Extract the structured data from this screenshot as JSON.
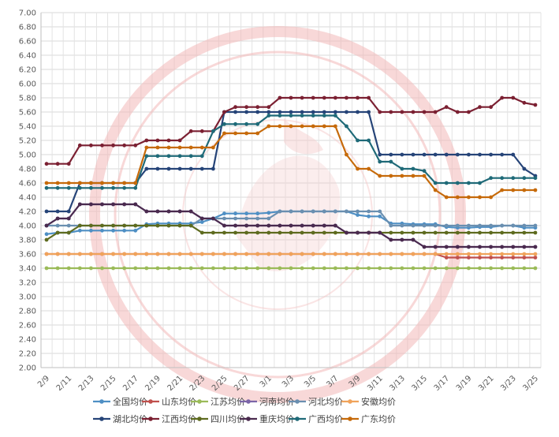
{
  "chart_data": {
    "type": "line",
    "title": "",
    "xlabel": "",
    "ylabel": "",
    "ylim": [
      2.0,
      7.0
    ],
    "ytick_labels": [
      "2.00",
      "2.20",
      "2.40",
      "2.60",
      "2.80",
      "3.00",
      "3.20",
      "3.40",
      "3.60",
      "3.80",
      "4.00",
      "4.20",
      "4.40",
      "4.60",
      "4.80",
      "5.00",
      "5.20",
      "5.40",
      "5.60",
      "5.80",
      "6.00",
      "6.20",
      "6.40",
      "6.60",
      "6.80",
      "7.00"
    ],
    "x": [
      "2/9",
      "2/10",
      "2/11",
      "2/12",
      "2/13",
      "2/14",
      "2/15",
      "2/16",
      "2/17",
      "2/18",
      "2/19",
      "2/20",
      "2/21",
      "2/22",
      "2/23",
      "2/24",
      "2/25",
      "2/26",
      "2/27",
      "2/28",
      "3/1",
      "3/2",
      "3/3",
      "3/4",
      "3/5",
      "3/6",
      "3/7",
      "3/8",
      "3/9",
      "3/10",
      "3/11",
      "3/12",
      "3/13",
      "3/14",
      "3/15",
      "3/16",
      "3/17",
      "3/18",
      "3/19",
      "3/20",
      "3/21",
      "3/22",
      "3/23",
      "3/24",
      "3/25"
    ],
    "xtick_labels": [
      "2/9",
      "2/11",
      "2/13",
      "2/15",
      "2/17",
      "2/19",
      "2/21",
      "2/23",
      "2/25",
      "2/27",
      "3/1",
      "3/3",
      "3/5",
      "3/7",
      "3/9",
      "3/11",
      "3/13",
      "3/15",
      "3/17",
      "3/19",
      "3/21",
      "3/23",
      "3/25"
    ],
    "grid": true,
    "legend_position": "bottom",
    "series": [
      {
        "name": "全国均价",
        "color": "#4e8fc4",
        "marker": true,
        "values": [
          3.88,
          3.9,
          3.9,
          3.93,
          3.93,
          3.93,
          3.93,
          3.93,
          3.93,
          4.02,
          4.03,
          4.03,
          4.03,
          4.03,
          4.05,
          4.1,
          4.17,
          4.17,
          4.17,
          4.17,
          4.18,
          4.2,
          4.2,
          4.2,
          4.2,
          4.2,
          4.2,
          4.2,
          4.15,
          4.13,
          4.13,
          4.03,
          4.03,
          4.02,
          4.02,
          4.02,
          3.98,
          3.97,
          3.97,
          3.98,
          3.98,
          4.0,
          4.0,
          3.97,
          3.97
        ]
      },
      {
        "name": "山东均价",
        "color": "#c0504d",
        "marker": true,
        "values": [
          3.6,
          3.6,
          3.6,
          3.6,
          3.6,
          3.6,
          3.6,
          3.6,
          3.6,
          3.6,
          3.6,
          3.6,
          3.6,
          3.6,
          3.6,
          3.6,
          3.6,
          3.6,
          3.6,
          3.6,
          3.6,
          3.6,
          3.6,
          3.6,
          3.6,
          3.6,
          3.6,
          3.6,
          3.6,
          3.6,
          3.6,
          3.6,
          3.6,
          3.6,
          3.6,
          3.6,
          3.55,
          3.55,
          3.55,
          3.55,
          3.55,
          3.55,
          3.55,
          3.55,
          3.55
        ]
      },
      {
        "name": "江苏均价",
        "color": "#9bbb59",
        "marker": true,
        "values": [
          3.4,
          3.4,
          3.4,
          3.4,
          3.4,
          3.4,
          3.4,
          3.4,
          3.4,
          3.4,
          3.4,
          3.4,
          3.4,
          3.4,
          3.4,
          3.4,
          3.4,
          3.4,
          3.4,
          3.4,
          3.4,
          3.4,
          3.4,
          3.4,
          3.4,
          3.4,
          3.4,
          3.4,
          3.4,
          3.4,
          3.4,
          3.4,
          3.4,
          3.4,
          3.4,
          3.4,
          3.4,
          3.4,
          3.4,
          3.4,
          3.4,
          3.4,
          3.4,
          3.4,
          3.4
        ]
      },
      {
        "name": "河南均价",
        "color": "#7c65a8",
        "marker": true,
        "values": [
          4.0,
          4.1,
          4.1,
          4.3,
          4.3,
          4.3,
          4.3,
          4.3,
          4.3,
          4.2,
          4.2,
          4.2,
          4.2,
          4.2,
          4.1,
          4.1,
          4.0,
          4.0,
          4.0,
          4.0,
          4.0,
          4.0,
          4.0,
          4.0,
          4.0,
          4.0,
          4.0,
          3.9,
          3.9,
          3.9,
          3.9,
          3.8,
          3.8,
          3.8,
          3.7,
          3.7,
          3.7,
          3.7,
          3.7,
          3.7,
          3.7,
          3.7,
          3.7,
          3.7,
          3.7
        ]
      },
      {
        "name": "河北均价",
        "color": "#6a8fb0",
        "marker": true,
        "values": [
          4.0,
          4.0,
          4.0,
          4.0,
          4.0,
          4.0,
          4.0,
          4.0,
          4.0,
          4.0,
          4.0,
          4.0,
          4.0,
          4.0,
          4.1,
          4.1,
          4.1,
          4.1,
          4.1,
          4.1,
          4.1,
          4.2,
          4.2,
          4.2,
          4.2,
          4.2,
          4.2,
          4.2,
          4.2,
          4.2,
          4.2,
          4.0,
          4.0,
          4.0,
          4.0,
          4.0,
          4.0,
          4.0,
          4.0,
          4.0,
          4.0,
          4.0,
          4.0,
          4.0,
          4.0
        ]
      },
      {
        "name": "安徽均价",
        "color": "#f0a35b",
        "marker": true,
        "values": [
          3.6,
          3.6,
          3.6,
          3.6,
          3.6,
          3.6,
          3.6,
          3.6,
          3.6,
          3.6,
          3.6,
          3.6,
          3.6,
          3.6,
          3.6,
          3.6,
          3.6,
          3.6,
          3.6,
          3.6,
          3.6,
          3.6,
          3.6,
          3.6,
          3.6,
          3.6,
          3.6,
          3.6,
          3.6,
          3.6,
          3.6,
          3.6,
          3.6,
          3.6,
          3.6,
          3.6,
          3.6,
          3.6,
          3.6,
          3.6,
          3.6,
          3.6,
          3.6,
          3.6,
          3.6
        ]
      },
      {
        "name": "湖北均价",
        "color": "#264478",
        "marker": true,
        "values": [
          4.2,
          4.2,
          4.2,
          4.6,
          4.6,
          4.6,
          4.6,
          4.6,
          4.6,
          4.8,
          4.8,
          4.8,
          4.8,
          4.8,
          4.8,
          4.8,
          5.6,
          5.6,
          5.6,
          5.6,
          5.6,
          5.6,
          5.6,
          5.6,
          5.6,
          5.6,
          5.6,
          5.6,
          5.6,
          5.6,
          5.0,
          5.0,
          5.0,
          5.0,
          5.0,
          5.0,
          5.0,
          5.0,
          5.0,
          5.0,
          5.0,
          5.0,
          5.0,
          4.8,
          4.7
        ]
      },
      {
        "name": "江西均价",
        "color": "#7b2032",
        "marker": true,
        "values": [
          4.87,
          4.87,
          4.87,
          5.13,
          5.13,
          5.13,
          5.13,
          5.13,
          5.13,
          5.2,
          5.2,
          5.2,
          5.2,
          5.33,
          5.33,
          5.33,
          5.6,
          5.67,
          5.67,
          5.67,
          5.67,
          5.8,
          5.8,
          5.8,
          5.8,
          5.8,
          5.8,
          5.8,
          5.8,
          5.8,
          5.6,
          5.6,
          5.6,
          5.6,
          5.6,
          5.6,
          5.67,
          5.6,
          5.6,
          5.67,
          5.67,
          5.8,
          5.8,
          5.73,
          5.7
        ]
      },
      {
        "name": "四川均价",
        "color": "#5e6b1f",
        "marker": true,
        "values": [
          3.8,
          3.9,
          3.9,
          4.0,
          4.0,
          4.0,
          4.0,
          4.0,
          4.0,
          4.0,
          4.0,
          4.0,
          4.0,
          4.0,
          3.9,
          3.9,
          3.9,
          3.9,
          3.9,
          3.9,
          3.9,
          3.9,
          3.9,
          3.9,
          3.9,
          3.9,
          3.9,
          3.9,
          3.9,
          3.9,
          3.9,
          3.9,
          3.9,
          3.9,
          3.9,
          3.9,
          3.9,
          3.9,
          3.9,
          3.9,
          3.9,
          3.9,
          3.9,
          3.9,
          3.9
        ]
      },
      {
        "name": "重庆均价",
        "color": "#4a2a4e",
        "marker": true,
        "values": [
          4.0,
          4.1,
          4.1,
          4.3,
          4.3,
          4.3,
          4.3,
          4.3,
          4.3,
          4.2,
          4.2,
          4.2,
          4.2,
          4.2,
          4.1,
          4.1,
          4.0,
          4.0,
          4.0,
          4.0,
          4.0,
          4.0,
          4.0,
          4.0,
          4.0,
          4.0,
          4.0,
          3.9,
          3.9,
          3.9,
          3.9,
          3.8,
          3.8,
          3.8,
          3.7,
          3.7,
          3.7,
          3.7,
          3.7,
          3.7,
          3.7,
          3.7,
          3.7,
          3.7,
          3.7
        ]
      },
      {
        "name": "广西均价",
        "color": "#1f6a78",
        "marker": true,
        "values": [
          4.53,
          4.53,
          4.53,
          4.53,
          4.53,
          4.53,
          4.53,
          4.53,
          4.53,
          4.98,
          4.98,
          4.98,
          4.98,
          4.98,
          4.98,
          5.33,
          5.43,
          5.43,
          5.43,
          5.43,
          5.55,
          5.55,
          5.55,
          5.55,
          5.55,
          5.55,
          5.55,
          5.4,
          5.2,
          5.2,
          4.9,
          4.9,
          4.8,
          4.8,
          4.77,
          4.6,
          4.6,
          4.6,
          4.6,
          4.6,
          4.67,
          4.67,
          4.67,
          4.67,
          4.67
        ]
      },
      {
        "name": "广东均价",
        "color": "#c66a0a",
        "marker": true,
        "values": [
          4.6,
          4.6,
          4.6,
          4.6,
          4.6,
          4.6,
          4.6,
          4.6,
          4.6,
          5.1,
          5.1,
          5.1,
          5.1,
          5.1,
          5.1,
          5.1,
          5.3,
          5.3,
          5.3,
          5.3,
          5.4,
          5.4,
          5.4,
          5.4,
          5.4,
          5.4,
          5.4,
          5.0,
          4.8,
          4.8,
          4.7,
          4.7,
          4.7,
          4.7,
          4.7,
          4.5,
          4.4,
          4.4,
          4.4,
          4.4,
          4.4,
          4.5,
          4.5,
          4.5,
          4.5
        ]
      }
    ]
  }
}
